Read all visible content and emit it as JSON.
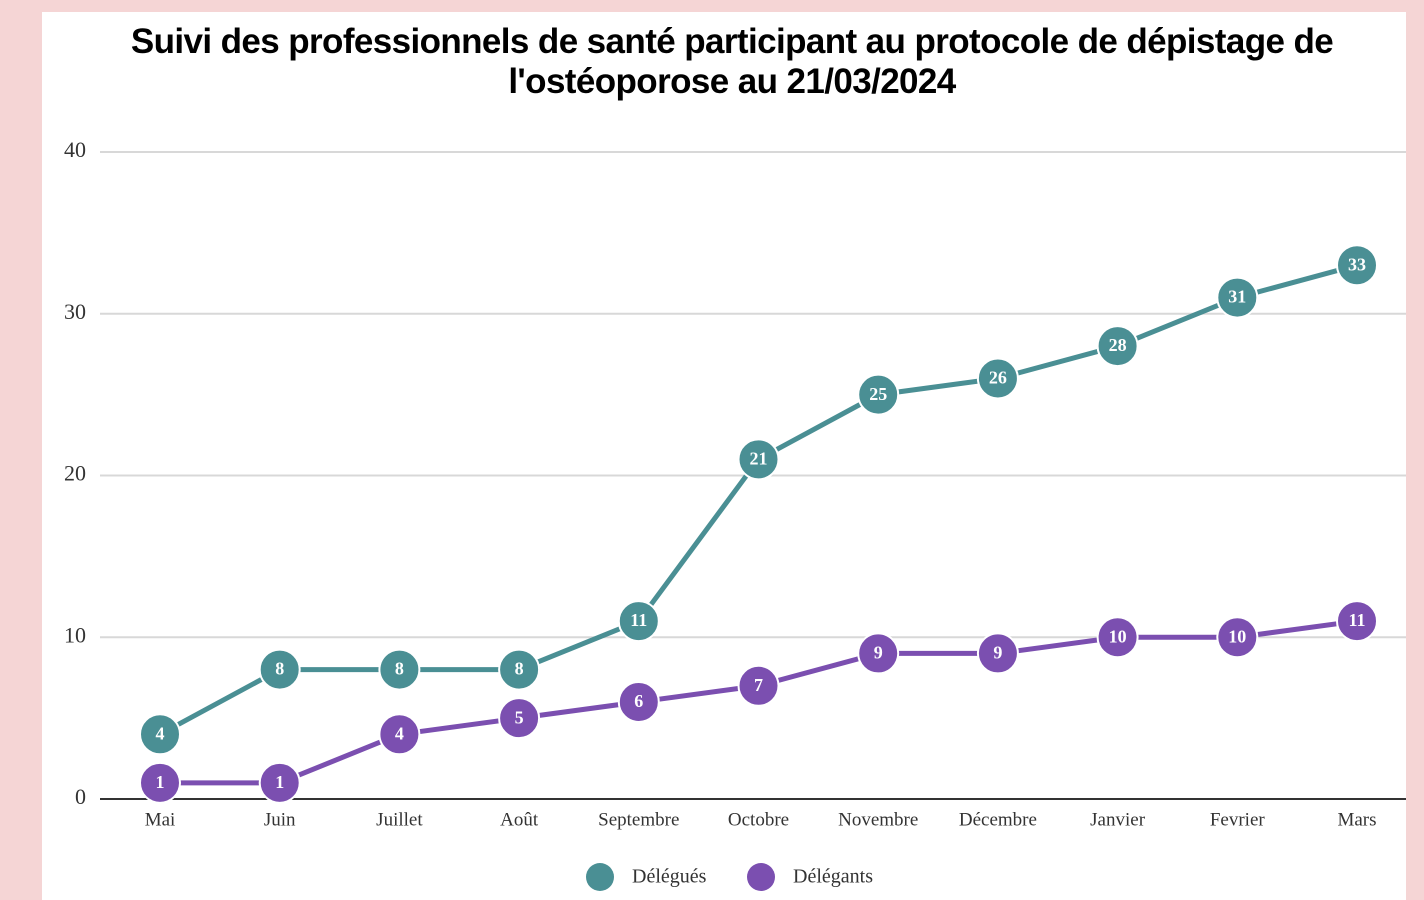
{
  "chart_data": {
    "type": "line",
    "title": "Suivi des professionnels de santé participant au protocole de dépistage de l'ostéoporose au 21/03/2024",
    "categories": [
      "Mai",
      "Juin",
      "Juillet",
      "Août",
      "Septembre",
      "Octobre",
      "Novembre",
      "Décembre",
      "Janvier",
      "Fevrier",
      "Mars"
    ],
    "series": [
      {
        "name": "Délégués",
        "color": "#4a8f94",
        "values": [
          4,
          8,
          8,
          8,
          11,
          21,
          25,
          26,
          28,
          31,
          33
        ]
      },
      {
        "name": "Délégants",
        "color": "#7b4fb0",
        "values": [
          1,
          1,
          4,
          5,
          6,
          7,
          9,
          9,
          10,
          10,
          11
        ]
      }
    ],
    "ylim": [
      0,
      40
    ],
    "yticks": [
      0,
      10,
      20,
      30,
      40
    ],
    "grid": true,
    "legend": "bottom"
  }
}
